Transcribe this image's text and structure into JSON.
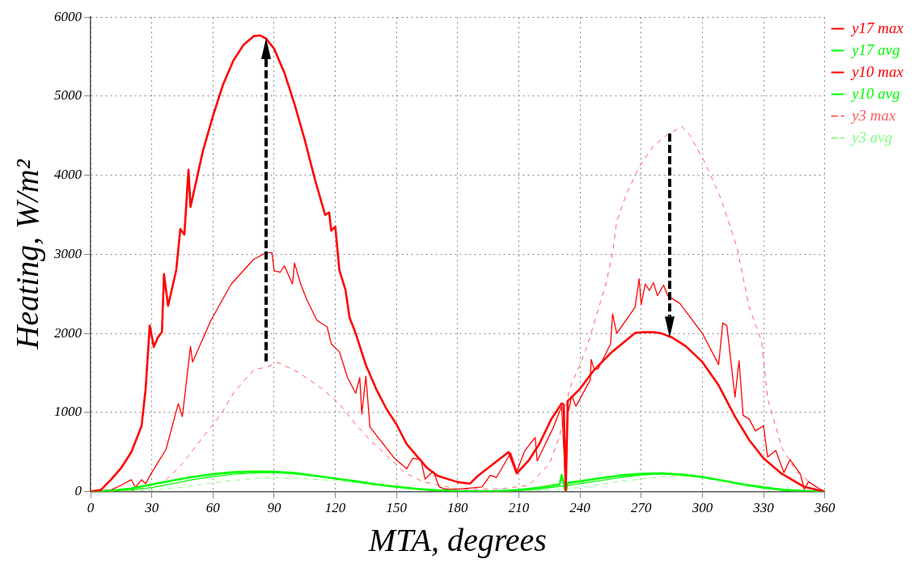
{
  "chart_data": {
    "type": "line",
    "xlabel": "MTA, degrees",
    "ylabel": "Heating, W/m²",
    "xlim": [
      0,
      360
    ],
    "ylim": [
      0,
      6000
    ],
    "xticks": [
      0,
      30,
      60,
      90,
      120,
      150,
      180,
      210,
      240,
      270,
      300,
      330,
      360
    ],
    "yticks": [
      0,
      1000,
      2000,
      3000,
      4000,
      5000,
      6000
    ],
    "grid": true,
    "legend": "top right",
    "marker": "none",
    "series": [
      {
        "name": "y17 max",
        "color": "#ff0000",
        "line_style": "solid",
        "x": [
          0,
          5,
          10,
          15,
          20,
          25,
          27,
          29,
          31,
          33,
          35,
          36,
          38,
          42,
          44,
          46,
          48,
          49,
          55,
          60,
          65,
          70,
          75,
          80,
          83,
          86,
          90,
          95,
          100,
          105,
          110,
          115,
          117,
          118,
          120,
          122,
          125,
          127,
          130,
          135,
          140,
          145,
          150,
          155,
          160,
          165,
          170,
          180,
          186,
          190,
          195,
          200,
          205,
          209,
          215,
          220,
          226,
          231,
          232,
          233,
          234,
          240,
          247,
          255,
          262,
          267,
          271,
          276,
          280,
          285,
          292,
          300,
          308,
          316,
          323,
          330,
          339,
          350,
          360
        ],
        "values": [
          0,
          20,
          150,
          300,
          500,
          830,
          1300,
          2100,
          1830,
          1950,
          2020,
          2750,
          2350,
          2800,
          3320,
          3250,
          4070,
          3600,
          4300,
          4750,
          5150,
          5450,
          5650,
          5760,
          5770,
          5730,
          5600,
          5300,
          4900,
          4450,
          3950,
          3500,
          3530,
          3300,
          3350,
          2800,
          2550,
          2200,
          2000,
          1600,
          1300,
          1050,
          850,
          600,
          450,
          300,
          200,
          120,
          100,
          200,
          300,
          400,
          500,
          230,
          400,
          600,
          920,
          1115,
          1100,
          0,
          1145,
          1300,
          1540,
          1750,
          1900,
          2007,
          2015,
          2017,
          2000,
          1951,
          1836,
          1639,
          1343,
          948,
          651,
          421,
          224,
          59,
          0
        ]
      },
      {
        "name": "y17 avg",
        "color": "#00ff00",
        "line_style": "solid",
        "x": [
          0,
          10,
          20,
          30,
          40,
          50,
          60,
          70,
          80,
          90,
          100,
          110,
          120,
          130,
          140,
          150,
          160,
          170,
          180,
          190,
          200,
          210,
          220,
          230,
          231,
          233,
          234,
          240,
          250,
          260,
          270,
          280,
          290,
          300,
          310,
          320,
          330,
          340,
          350,
          360
        ],
        "values": [
          0,
          10,
          40,
          90,
          140,
          185,
          220,
          245,
          255,
          250,
          235,
          200,
          165,
          130,
          90,
          60,
          35,
          15,
          5,
          2,
          5,
          20,
          50,
          90,
          210,
          0,
          110,
          130,
          170,
          205,
          225,
          230,
          215,
          185,
          140,
          90,
          50,
          20,
          5,
          0
        ]
      },
      {
        "name": "y10 max",
        "color": "#ff0000",
        "line_style": "solid",
        "x": [
          0,
          10,
          15,
          20,
          22,
          25,
          27,
          29,
          37,
          43,
          45,
          49,
          50,
          59,
          69,
          80,
          86,
          89,
          90,
          93,
          95,
          99,
          100,
          103,
          106,
          111,
          116,
          118,
          122,
          126,
          130,
          132,
          133,
          135,
          137,
          149,
          155,
          158,
          162,
          164,
          168,
          171,
          174,
          180,
          192,
          196,
          199,
          206,
          209,
          213,
          218,
          219,
          227,
          231,
          233,
          234,
          236,
          238,
          245,
          245.5,
          247,
          249,
          255,
          256,
          258,
          267,
          269,
          270,
          272,
          274,
          276,
          278,
          281,
          283,
          289,
          300,
          308,
          310,
          312,
          316,
          318,
          320,
          323,
          326,
          330,
          332,
          336,
          340,
          343,
          348,
          350,
          352,
          357,
          360
        ],
        "values": [
          0,
          20,
          80,
          150,
          50,
          150,
          100,
          197,
          536,
          1112,
          948,
          1836,
          1639,
          2165,
          2626,
          2938,
          3020,
          3020,
          2790,
          2774,
          2856,
          2626,
          2890,
          2626,
          2428,
          2165,
          2083,
          1869,
          1770,
          1441,
          1244,
          1441,
          980,
          1458,
          816,
          421,
          289,
          421,
          405,
          158,
          257,
          59,
          30,
          30,
          59,
          207,
          178,
          487,
          257,
          520,
          684,
          388,
          816,
          1079,
          59,
          980,
          1211,
          1079,
          1409,
          1671,
          1540,
          1557,
          1869,
          2248,
          2001,
          2330,
          2692,
          2363,
          2626,
          2544,
          2643,
          2478,
          2610,
          2478,
          2379,
          2001,
          1606,
          2132,
          2100,
          1194,
          1655,
          964,
          915,
          767,
          832,
          437,
          520,
          240,
          405,
          224,
          27,
          125,
          42,
          0
        ]
      },
      {
        "name": "y10 avg",
        "color": "#00ff00",
        "line_style": "solid",
        "x": [
          0,
          20,
          30,
          40,
          50,
          60,
          70,
          80,
          90,
          100,
          120,
          140,
          160,
          180,
          200,
          220,
          240,
          260,
          270,
          280,
          290,
          300,
          320,
          340,
          360
        ],
        "values": [
          0,
          20,
          50,
          100,
          150,
          190,
          220,
          235,
          240,
          225,
          165,
          95,
          35,
          5,
          3,
          30,
          100,
          180,
          210,
          225,
          210,
          180,
          95,
          25,
          0
        ]
      },
      {
        "name": "y3 max",
        "color": "#ff6060",
        "line_style": "dashed",
        "x": [
          0,
          20,
          36,
          44,
          55,
          64,
          70,
          80,
          86,
          92,
          102,
          113,
          122,
          130,
          137,
          144,
          154,
          163,
          180,
          200,
          215,
          225,
          230,
          235,
          240,
          243,
          247,
          253,
          256,
          258,
          263,
          269,
          276,
          283,
          290,
          294,
          301,
          309,
          317,
          323,
          329,
          332,
          339,
          346,
          354,
          360
        ],
        "values": [
          0,
          0,
          125,
          323,
          684,
          980,
          1244,
          1540,
          1573,
          1632,
          1507,
          1310,
          1112,
          849,
          652,
          487,
          240,
          125,
          30,
          30,
          80,
          350,
          700,
          1310,
          1606,
          1803,
          2132,
          2659,
          3020,
          3416,
          3778,
          4107,
          4370,
          4518,
          4617,
          4501,
          4172,
          3712,
          3087,
          2330,
          1902,
          1178,
          553,
          257,
          92,
          0
        ]
      },
      {
        "name": "y3 avg",
        "color": "#80ff80",
        "line_style": "dashed",
        "x": [
          0,
          30,
          40,
          50,
          60,
          70,
          80,
          90,
          100,
          120,
          140,
          160,
          180,
          220,
          240,
          260,
          280,
          290,
          300,
          320,
          340,
          360
        ],
        "values": [
          0,
          15,
          40,
          70,
          110,
          140,
          165,
          175,
          170,
          140,
          80,
          30,
          5,
          10,
          50,
          130,
          190,
          200,
          180,
          100,
          30,
          0
        ]
      }
    ]
  }
}
